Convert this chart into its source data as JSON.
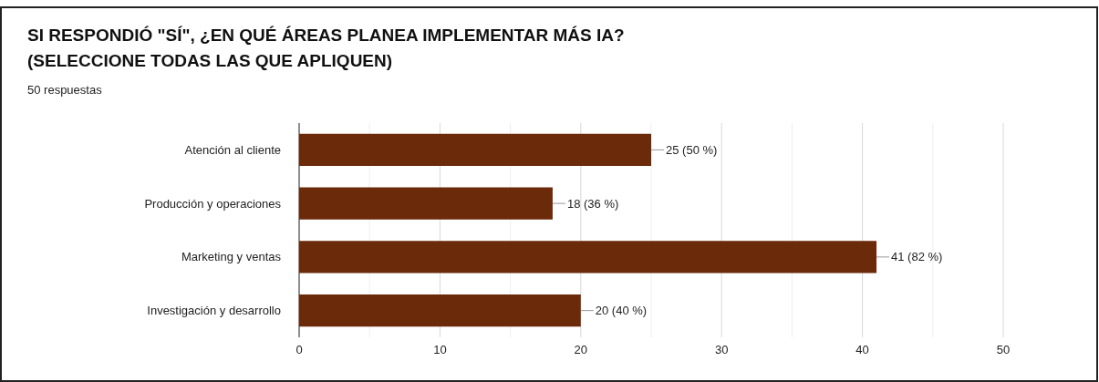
{
  "chart_data": {
    "type": "bar",
    "orientation": "horizontal",
    "title": "SI RESPONDIÓ \"SÍ\", ¿EN QUÉ ÁREAS PLANEA IMPLEMENTAR MÁS IA? (SELECCIONE TODAS LAS QUE APLIQUEN)",
    "subtitle": "50 respuestas",
    "categories": [
      "Atención al cliente",
      "Producción y operaciones",
      "Marketing y ventas",
      "Investigación y desarrollo"
    ],
    "values": [
      25,
      18,
      41,
      20
    ],
    "value_labels": [
      "25 (50 %)",
      "18 (36 %)",
      "41 (82 %)",
      "20 (40 %)"
    ],
    "color": "#6b2a0a",
    "xlim": [
      0,
      50
    ],
    "xticks": [
      0,
      {
        "value": 5,
        "label": null
      },
      10,
      {
        "value": 15,
        "label": null
      },
      20,
      {
        "value": 25,
        "label": null
      },
      30,
      {
        "value": 35,
        "label": null
      },
      40,
      {
        "value": 45,
        "label": null
      },
      50
    ],
    "grid": "x"
  }
}
